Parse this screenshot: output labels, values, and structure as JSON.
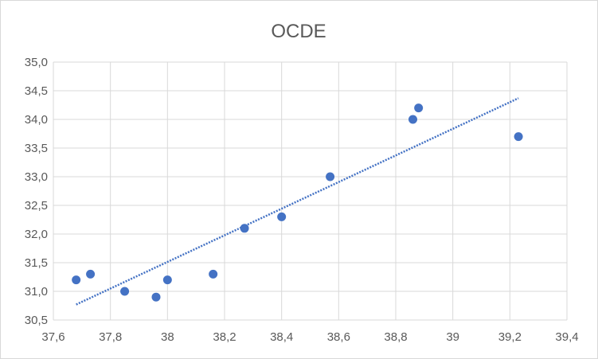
{
  "chart_data": {
    "type": "scatter",
    "title": "OCDE",
    "xlabel": "",
    "ylabel": "",
    "xlim": [
      37.6,
      39.4
    ],
    "ylim": [
      30.5,
      35.0
    ],
    "x_ticks": [
      "37,6",
      "37,8",
      "38",
      "38,2",
      "38,4",
      "38,6",
      "38,8",
      "39",
      "39,2",
      "39,4"
    ],
    "y_ticks": [
      "30,5",
      "31,0",
      "31,5",
      "32,0",
      "32,5",
      "33,0",
      "33,5",
      "34,0",
      "34,5",
      "35,0"
    ],
    "grid": true,
    "legend": "none",
    "series": [
      {
        "color": "#4472c4",
        "points": [
          {
            "x": 37.68,
            "y": 31.2
          },
          {
            "x": 37.73,
            "y": 31.3
          },
          {
            "x": 37.85,
            "y": 31.0
          },
          {
            "x": 37.96,
            "y": 30.9
          },
          {
            "x": 38.0,
            "y": 31.2
          },
          {
            "x": 38.16,
            "y": 31.3
          },
          {
            "x": 38.27,
            "y": 32.1
          },
          {
            "x": 38.4,
            "y": 32.3
          },
          {
            "x": 38.57,
            "y": 33.0
          },
          {
            "x": 38.86,
            "y": 34.0
          },
          {
            "x": 38.88,
            "y": 34.2
          },
          {
            "x": 39.23,
            "y": 33.7
          }
        ]
      }
    ],
    "trendline": {
      "type": "linear",
      "color": "#4472c4",
      "style": "dotted",
      "x_start": 37.68,
      "y_start": 30.77,
      "x_end": 39.23,
      "y_end": 34.37
    }
  }
}
